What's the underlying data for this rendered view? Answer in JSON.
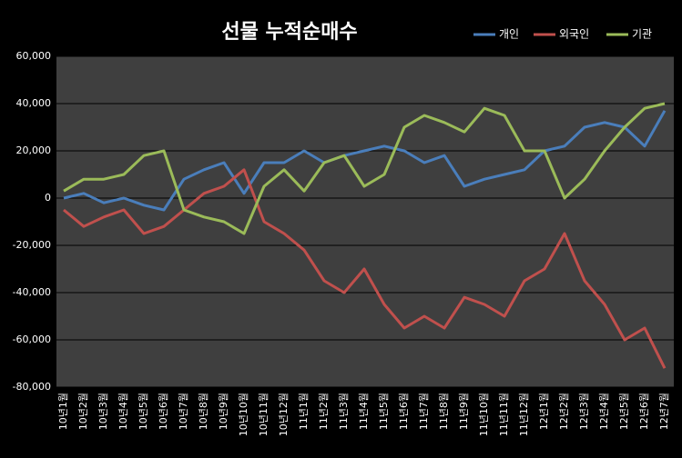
{
  "chart_data": {
    "type": "line",
    "title": "선물 누적순매수",
    "categories": [
      "10년1월",
      "10년2월",
      "10년3월",
      "10년4월",
      "10년5월",
      "10년6월",
      "10년7월",
      "10년8월",
      "10년9월",
      "10년10월",
      "10년11월",
      "10년12월",
      "11년1월",
      "11년2월",
      "11년3월",
      "11년4월",
      "11년5월",
      "11년6월",
      "11년7월",
      "11년8월",
      "11년9월",
      "11년10월",
      "11년11월",
      "11년12월",
      "12년1월",
      "12년2월",
      "12년3월",
      "12년4월",
      "12년5월",
      "12년6월",
      "12년7월"
    ],
    "series": [
      {
        "name": "개인",
        "color": "#4a7ebb",
        "values": [
          0,
          2000,
          -2000,
          0,
          -3000,
          -5000,
          8000,
          12000,
          15000,
          2000,
          15000,
          15000,
          20000,
          15000,
          18000,
          20000,
          22000,
          20000,
          15000,
          18000,
          5000,
          8000,
          10000,
          12000,
          20000,
          22000,
          30000,
          32000,
          30000,
          22000,
          37000
        ]
      },
      {
        "name": "외국인",
        "color": "#c0504d",
        "values": [
          -5000,
          -12000,
          -8000,
          -5000,
          -15000,
          -12000,
          -5000,
          2000,
          5000,
          12000,
          -10000,
          -15000,
          -22000,
          -35000,
          -40000,
          -30000,
          -45000,
          -55000,
          -50000,
          -55000,
          -42000,
          -45000,
          -50000,
          -35000,
          -30000,
          -15000,
          -35000,
          -45000,
          -60000,
          -55000,
          -72000
        ]
      },
      {
        "name": "기관",
        "color": "#9bbb59",
        "values": [
          3000,
          8000,
          8000,
          10000,
          18000,
          20000,
          -5000,
          -8000,
          -10000,
          -15000,
          5000,
          12000,
          3000,
          15000,
          18000,
          5000,
          10000,
          30000,
          35000,
          32000,
          28000,
          38000,
          35000,
          20000,
          20000,
          0,
          8000,
          20000,
          30000,
          38000,
          40000
        ]
      }
    ],
    "ylim": [
      -80000,
      60000
    ],
    "yticks": [
      {
        "value": -80000,
        "label": "-80,000"
      },
      {
        "value": -60000,
        "label": "-60,000"
      },
      {
        "value": -40000,
        "label": "-40,000"
      },
      {
        "value": -20000,
        "label": "-20,000"
      },
      0,
      {
        "value": 20000,
        "label": "20,000"
      },
      {
        "value": 40000,
        "label": "40,000"
      },
      {
        "value": 60000,
        "label": "60,000"
      }
    ],
    "grid": true,
    "legend": "top-right"
  }
}
